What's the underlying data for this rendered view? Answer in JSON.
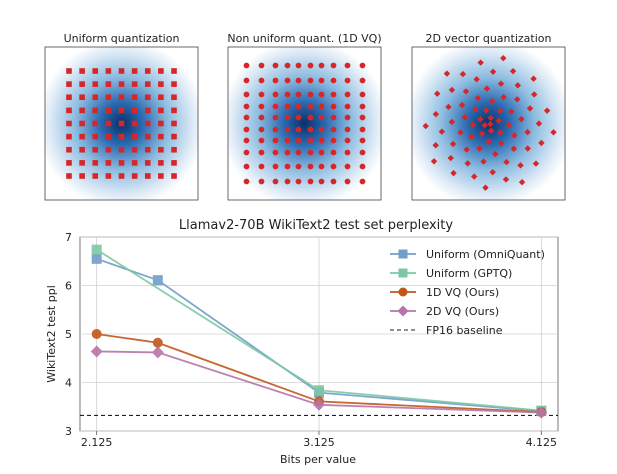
{
  "panels": [
    {
      "title": "Uniform quantization"
    },
    {
      "title": "Non uniform quant. (1D VQ)"
    },
    {
      "title": "2D vector quantization"
    }
  ],
  "chart_data": {
    "type": "line",
    "title": "Llamav2-70B WikiText2 test set perplexity",
    "xlabel": "Bits per value",
    "ylabel": "WikiText2 test ppl",
    "xlim": [
      2.05,
      4.2
    ],
    "ylim": [
      3,
      7
    ],
    "xticks": [
      2.125,
      3.125,
      4.125
    ],
    "xtick_labels": [
      "2.125",
      "3.125",
      "4.125"
    ],
    "yticks": [
      3,
      4,
      5,
      6,
      7
    ],
    "ytick_labels": [
      "3",
      "4",
      "5",
      "6",
      "7"
    ],
    "grid": true,
    "legend_position": "top-right",
    "series": [
      {
        "name": "Uniform (OmniQuant)",
        "color": "#6f9ec9",
        "marker": "square",
        "x": [
          2.125,
          2.4,
          3.125,
          4.125
        ],
        "y": [
          6.55,
          6.11,
          3.79,
          3.41
        ]
      },
      {
        "name": "Uniform (GPTQ)",
        "color": "#7ec7a4",
        "marker": "square",
        "x": [
          2.125,
          3.125,
          4.125
        ],
        "y": [
          6.74,
          3.84,
          3.42
        ]
      },
      {
        "name": "1D VQ (Ours)",
        "color": "#c0561a",
        "marker": "circle",
        "x": [
          2.125,
          2.4,
          3.125,
          4.125
        ],
        "y": [
          5.0,
          4.82,
          3.61,
          3.39
        ]
      },
      {
        "name": "2D VQ (Ours)",
        "color": "#b874a7",
        "marker": "diamond",
        "x": [
          2.125,
          2.4,
          3.125,
          4.125
        ],
        "y": [
          4.64,
          4.62,
          3.54,
          3.38
        ]
      }
    ],
    "baseline": {
      "name": "FP16 baseline",
      "y": 3.32,
      "color": "#222222"
    }
  }
}
